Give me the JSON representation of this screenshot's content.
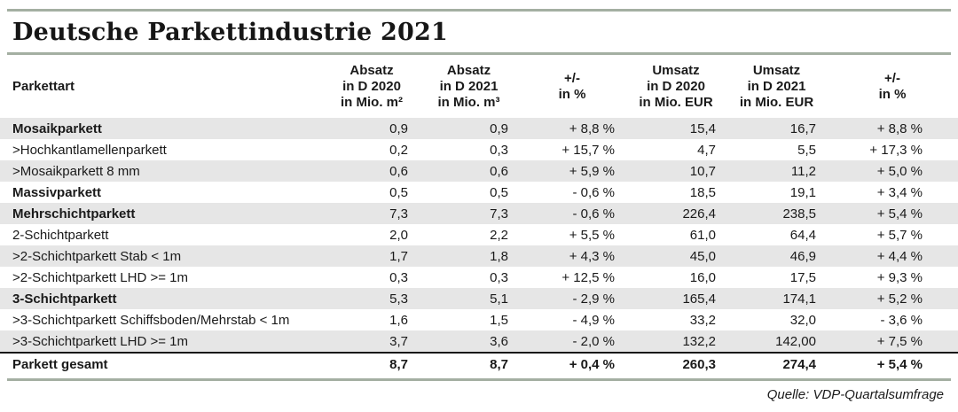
{
  "title": "Deutsche Parkettindustrie 2021",
  "source_note": "Quelle: VDP-Quartalsumfrage",
  "colors": {
    "rule": "#a4afa2",
    "row_shade": "#e6e6e6",
    "text": "#1a1a1a",
    "total_divider": "#161616"
  },
  "chart_data": {
    "type": "table",
    "title": "Deutsche Parkettindustrie 2021",
    "source": "Quelle: VDP-Quartalsumfrage",
    "columns": [
      "Parkettart",
      "Absatz in D 2020 in Mio. m²",
      "Absatz in D 2021 in Mio. m³",
      "+/- in %",
      "Umsatz in D 2020 in Mio. EUR",
      "Umsatz in D 2021 in Mio. EUR",
      "+/- in %"
    ],
    "header_lines": [
      [
        "Parkettart"
      ],
      [
        "Absatz",
        "in D 2020",
        "in Mio. m²"
      ],
      [
        "Absatz",
        "in D 2021",
        "in Mio. m³"
      ],
      [
        "+/-",
        "in %"
      ],
      [
        "Umsatz",
        "in D 2020",
        "in Mio. EUR"
      ],
      [
        "Umsatz",
        "in D 2021",
        "in Mio. EUR"
      ],
      [
        "+/-",
        "in %"
      ]
    ],
    "rows": [
      {
        "label": "Mosaikparkett",
        "bold": true,
        "total": false,
        "values": [
          "0,9",
          "0,9",
          "+ 8,8 %",
          "15,4",
          "16,7",
          "+ 8,8 %"
        ]
      },
      {
        "label": ">Hochkantlamellenparkett",
        "bold": false,
        "total": false,
        "values": [
          "0,2",
          "0,3",
          "+ 15,7 %",
          "4,7",
          "5,5",
          "+ 17,3 %"
        ]
      },
      {
        "label": ">Mosaikparkett 8 mm",
        "bold": false,
        "total": false,
        "values": [
          "0,6",
          "0,6",
          "+ 5,9 %",
          "10,7",
          "11,2",
          "+ 5,0 %"
        ]
      },
      {
        "label": "Massivparkett",
        "bold": true,
        "total": false,
        "values": [
          "0,5",
          "0,5",
          "- 0,6 %",
          "18,5",
          "19,1",
          "+ 3,4 %"
        ]
      },
      {
        "label": "Mehrschichtparkett",
        "bold": true,
        "total": false,
        "values": [
          "7,3",
          "7,3",
          "- 0,6 %",
          "226,4",
          "238,5",
          "+ 5,4 %"
        ]
      },
      {
        "label": "2-Schichtparkett",
        "bold": false,
        "total": false,
        "values": [
          "2,0",
          "2,2",
          "+ 5,5 %",
          "61,0",
          "64,4",
          "+ 5,7 %"
        ]
      },
      {
        "label": ">2-Schichtparkett Stab < 1m",
        "bold": false,
        "total": false,
        "values": [
          "1,7",
          "1,8",
          "+ 4,3 %",
          "45,0",
          "46,9",
          "+ 4,4 %"
        ]
      },
      {
        "label": ">2-Schichtparkett LHD >= 1m",
        "bold": false,
        "total": false,
        "values": [
          "0,3",
          "0,3",
          "+ 12,5 %",
          "16,0",
          "17,5",
          "+ 9,3 %"
        ]
      },
      {
        "label": "3-Schichtparkett",
        "bold": true,
        "total": false,
        "values": [
          "5,3",
          "5,1",
          "- 2,9 %",
          "165,4",
          "174,1",
          "+ 5,2 %"
        ]
      },
      {
        "label": ">3-Schichtparkett Schiffsboden/Mehrstab < 1m",
        "bold": false,
        "total": false,
        "values": [
          "1,6",
          "1,5",
          "- 4,9 %",
          "33,2",
          "32,0",
          "- 3,6 %"
        ]
      },
      {
        "label": ">3-Schichtparkett LHD >= 1m",
        "bold": false,
        "total": false,
        "values": [
          "3,7",
          "3,6",
          "- 2,0 %",
          "132,2",
          "142,00",
          "+ 7,5 %"
        ]
      },
      {
        "label": "Parkett gesamt",
        "bold": true,
        "total": true,
        "values": [
          "8,7",
          "8,7",
          "+ 0,4 %",
          "260,3",
          "274,4",
          "+ 5,4 %"
        ]
      }
    ]
  }
}
